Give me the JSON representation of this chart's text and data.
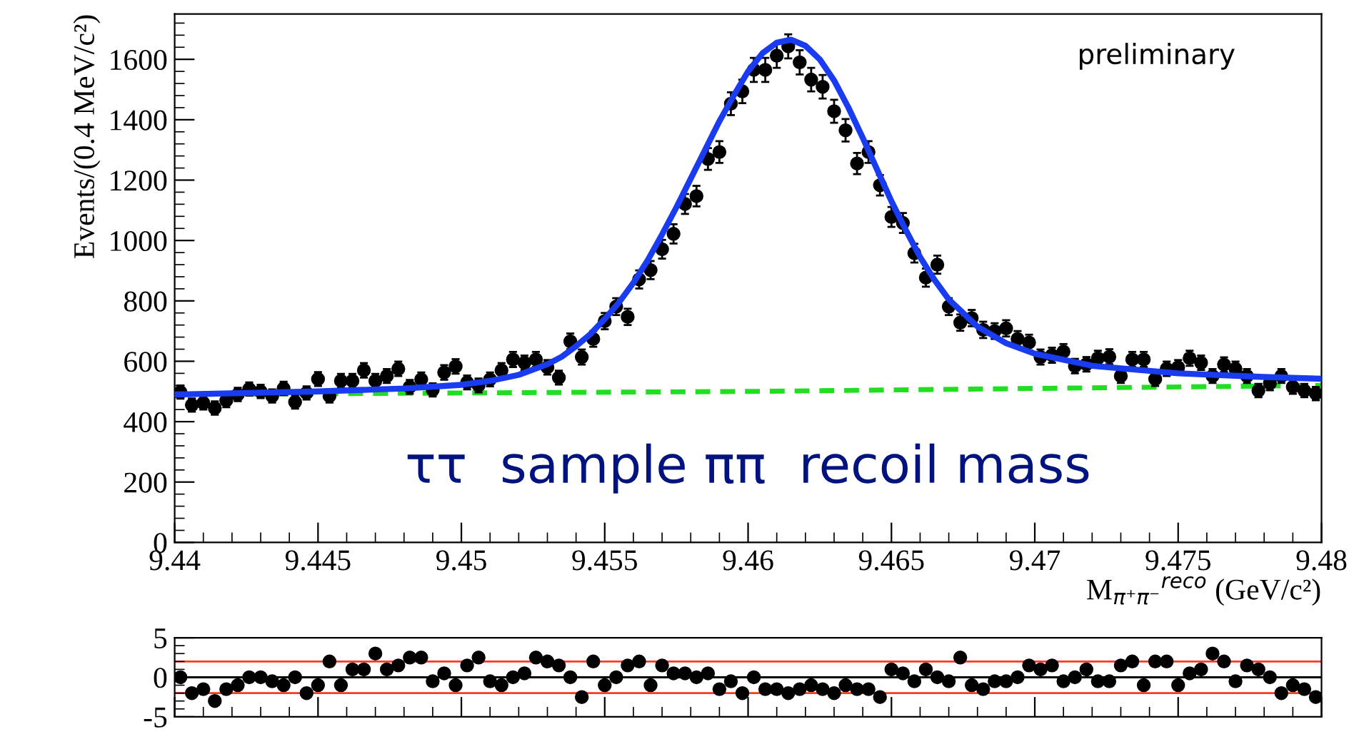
{
  "chart_data": [
    {
      "type": "scatter",
      "xlabel": "M$_{π⁺π⁻}$$^{reco}$ (GeV/c²)",
      "ylabel": "Events/(0.4 MeV/c²)",
      "xlim": [
        9.44,
        9.48
      ],
      "xticks": [
        9.44,
        9.445,
        9.45,
        9.455,
        9.46,
        9.465,
        9.47,
        9.475,
        9.48
      ],
      "ylim": [
        0,
        1750
      ],
      "yticks": [
        0,
        200,
        400,
        600,
        800,
        1000,
        1200,
        1400,
        1600
      ],
      "grid": false,
      "legend": false,
      "annotations": [
        "ττ  sample ππ  recoil mass",
        "preliminary"
      ],
      "series": [
        {
          "color": "#000000",
          "marker": "circle",
          "x": [
            9.4402,
            9.4406,
            9.441,
            9.4414,
            9.4418,
            9.4422,
            9.4426,
            9.443,
            9.4434,
            9.4438,
            9.4442,
            9.4446,
            9.445,
            9.4454,
            9.4458,
            9.4462,
            9.4466,
            9.447,
            9.4474,
            9.4478,
            9.4482,
            9.4486,
            9.449,
            9.4494,
            9.4498,
            9.4502,
            9.4506,
            9.451,
            9.4514,
            9.4518,
            9.4522,
            9.4526,
            9.453,
            9.4534,
            9.4538,
            9.4542,
            9.4546,
            9.455,
            9.4554,
            9.4558,
            9.4562,
            9.4566,
            9.457,
            9.4574,
            9.4578,
            9.4582,
            9.4586,
            9.459,
            9.4594,
            9.4598,
            9.4602,
            9.4606,
            9.461,
            9.4614,
            9.4618,
            9.4622,
            9.4626,
            9.463,
            9.4634,
            9.4638,
            9.4642,
            9.4646,
            9.465,
            9.4654,
            9.4658,
            9.4662,
            9.4666,
            9.467,
            9.4674,
            9.4678,
            9.4682,
            9.4686,
            9.469,
            9.4694,
            9.4698,
            9.4702,
            9.4706,
            9.471,
            9.4714,
            9.4718,
            9.4722,
            9.4726,
            9.473,
            9.4734,
            9.4738,
            9.4742,
            9.4746,
            9.475,
            9.4754,
            9.4758,
            9.4762,
            9.4766,
            9.477,
            9.4774,
            9.4778,
            9.4782,
            9.4786,
            9.479,
            9.4794,
            9.4798
          ],
          "values": [
            498,
            455,
            462,
            445,
            470,
            490,
            508,
            500,
            485,
            510,
            465,
            495,
            541,
            485,
            535,
            535,
            570,
            535,
            551,
            575,
            515,
            540,
            505,
            563,
            583,
            530,
            520,
            540,
            570,
            606,
            595,
            606,
            580,
            546,
            666,
            614,
            674,
            733,
            781,
            747,
            871,
            902,
            971,
            1022,
            1121,
            1147,
            1270,
            1293,
            1453,
            1494,
            1565,
            1565,
            1612,
            1643,
            1590,
            1533,
            1509,
            1428,
            1365,
            1255,
            1293,
            1183,
            1078,
            1058,
            958,
            877,
            920,
            781,
            728,
            743,
            704,
            700,
            709,
            674,
            662,
            614,
            620,
            632,
            584,
            590,
            610,
            615,
            551,
            606,
            606,
            541,
            575,
            580,
            610,
            595,
            551,
            589,
            575,
            551,
            503,
            527,
            551,
            515,
            503,
            493
          ],
          "errors": [
            22,
            22,
            22,
            22,
            22,
            22,
            22,
            22,
            22,
            22,
            22,
            22,
            23,
            22,
            23,
            23,
            24,
            23,
            23,
            24,
            23,
            23,
            22,
            24,
            24,
            23,
            23,
            23,
            24,
            25,
            24,
            25,
            24,
            23,
            26,
            25,
            26,
            27,
            28,
            27,
            30,
            30,
            31,
            32,
            33,
            34,
            36,
            36,
            38,
            39,
            40,
            40,
            40,
            40,
            40,
            39,
            39,
            38,
            37,
            35,
            36,
            34,
            33,
            33,
            31,
            30,
            30,
            28,
            27,
            27,
            27,
            26,
            27,
            26,
            26,
            25,
            25,
            25,
            24,
            24,
            25,
            25,
            23,
            25,
            25,
            23,
            24,
            24,
            25,
            24,
            23,
            24,
            24,
            23,
            22,
            23,
            23,
            23,
            22,
            22
          ]
        },
        {
          "type": "line",
          "color": "#1a3cf0",
          "line_style": "solid",
          "x": [
            9.44,
            9.445,
            9.448,
            9.45,
            9.451,
            9.452,
            9.453,
            9.4535,
            9.454,
            9.4545,
            9.455,
            9.4555,
            9.456,
            9.4565,
            9.457,
            9.4575,
            9.458,
            9.4585,
            9.459,
            9.4595,
            9.46,
            9.4605,
            9.461,
            9.4615,
            9.462,
            9.4625,
            9.463,
            9.4635,
            9.464,
            9.4645,
            9.465,
            9.4655,
            9.466,
            9.4665,
            9.467,
            9.468,
            9.469,
            9.47,
            9.472,
            9.475,
            9.478,
            9.48
          ],
          "values": [
            490,
            500,
            510,
            522,
            535,
            555,
            590,
            615,
            650,
            690,
            740,
            795,
            860,
            935,
            1020,
            1110,
            1205,
            1300,
            1395,
            1480,
            1560,
            1620,
            1655,
            1665,
            1645,
            1600,
            1530,
            1440,
            1340,
            1235,
            1130,
            1035,
            945,
            870,
            805,
            715,
            660,
            625,
            585,
            560,
            548,
            542
          ]
        },
        {
          "type": "line",
          "color": "#22dd22",
          "line_style": "dashed",
          "x": [
            9.44,
            9.45,
            9.46,
            9.47,
            9.48
          ],
          "values": [
            490,
            495,
            500,
            510,
            520
          ]
        }
      ]
    },
    {
      "type": "scatter",
      "xlim": [
        9.44,
        9.48
      ],
      "xticks": [
        9.44,
        9.445,
        9.45,
        9.455,
        9.46,
        9.465,
        9.47,
        9.475,
        9.48
      ],
      "ylim": [
        -5,
        5
      ],
      "yticks": [
        -5,
        0,
        5
      ],
      "tick_labels": "y",
      "grid": false,
      "legend": false,
      "ref_lines": [
        {
          "axis": "y",
          "value": 2,
          "color": "#ff3b1f"
        },
        {
          "axis": "y",
          "value": -2,
          "color": "#ff3b1f"
        },
        {
          "axis": "y",
          "value": 0,
          "color": "#000000"
        }
      ],
      "series": [
        {
          "color": "#000000",
          "marker": "circle",
          "x": [
            9.4402,
            9.4406,
            9.441,
            9.4414,
            9.4418,
            9.4422,
            9.4426,
            9.443,
            9.4434,
            9.4438,
            9.4442,
            9.4446,
            9.445,
            9.4454,
            9.4458,
            9.4462,
            9.4466,
            9.447,
            9.4474,
            9.4478,
            9.4482,
            9.4486,
            9.449,
            9.4494,
            9.4498,
            9.4502,
            9.4506,
            9.451,
            9.4514,
            9.4518,
            9.4522,
            9.4526,
            9.453,
            9.4534,
            9.4538,
            9.4542,
            9.4546,
            9.455,
            9.4554,
            9.4558,
            9.4562,
            9.4566,
            9.457,
            9.4574,
            9.4578,
            9.4582,
            9.4586,
            9.459,
            9.4594,
            9.4598,
            9.4602,
            9.4606,
            9.461,
            9.4614,
            9.4618,
            9.4622,
            9.4626,
            9.463,
            9.4634,
            9.4638,
            9.4642,
            9.4646,
            9.465,
            9.4654,
            9.4658,
            9.4662,
            9.4666,
            9.467,
            9.4674,
            9.4678,
            9.4682,
            9.4686,
            9.469,
            9.4694,
            9.4698,
            9.4702,
            9.4706,
            9.471,
            9.4714,
            9.4718,
            9.4722,
            9.4726,
            9.473,
            9.4734,
            9.4738,
            9.4742,
            9.4746,
            9.475,
            9.4754,
            9.4758,
            9.4762,
            9.4766,
            9.477,
            9.4774,
            9.4778,
            9.4782,
            9.4786,
            9.479,
            9.4794,
            9.4798
          ],
          "values": [
            0,
            -2,
            -1.5,
            -3,
            -1.5,
            -1,
            0,
            0,
            -0.5,
            -1,
            0,
            -2,
            -1,
            2,
            -1,
            1,
            1,
            3,
            1,
            1.5,
            2.5,
            2.5,
            -0.5,
            0.5,
            -1,
            1.5,
            2.5,
            -0.5,
            -1,
            0,
            0.5,
            2.5,
            2,
            1.5,
            0,
            -2.5,
            2,
            -1,
            0,
            1.5,
            2,
            -1,
            1.5,
            0.5,
            0.5,
            0,
            0.5,
            -1.5,
            -0.5,
            -2,
            0,
            -1.5,
            -1.5,
            -2,
            -1.5,
            -1,
            -1.5,
            -2,
            -1,
            -1.5,
            -1.5,
            -2.5,
            1,
            0.5,
            -0.5,
            1,
            0,
            -0.5,
            2.5,
            -1,
            -1.5,
            -0.5,
            -0.5,
            0,
            1.5,
            1,
            1.5,
            -0.5,
            0,
            1,
            -0.5,
            -0.5,
            1.5,
            2,
            -1,
            2,
            2,
            -1,
            0.5,
            1,
            3,
            2,
            -0.5,
            1.5,
            1,
            0,
            -2,
            -1,
            -1.5,
            -2.5
          ]
        }
      ]
    }
  ]
}
